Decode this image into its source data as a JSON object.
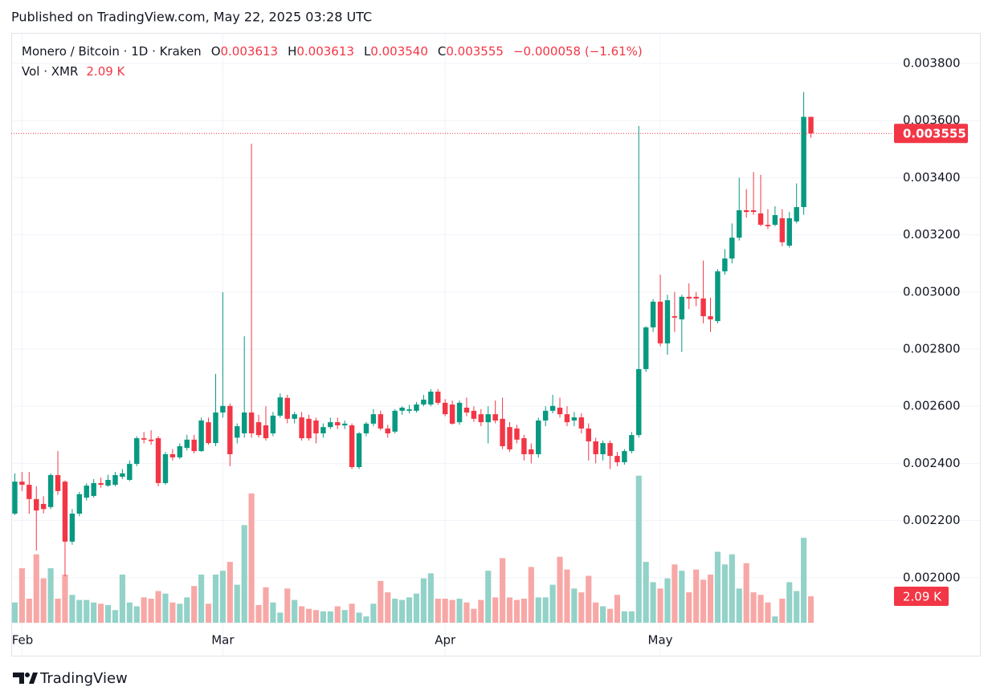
{
  "published": "Published on TradingView.com, May 22, 2025 03:28 UTC",
  "brand": "TradingView",
  "chart_data": {
    "type": "candlestick",
    "title": "Monero / Bitcoin · 1D · Kraken",
    "ohlc_legend": [
      {
        "key": "O",
        "value": "0.003613"
      },
      {
        "key": "H",
        "value": "0.003613"
      },
      {
        "key": "L",
        "value": "0.003540"
      },
      {
        "key": "C",
        "value": "0.003555"
      }
    ],
    "change": "−0.000058 (−1.61%)",
    "volume_legend": {
      "name": "Vol · XMR",
      "value": "2.09 K"
    },
    "up_color": "#089981",
    "down_color": "#f23645",
    "volume_up_color": "#92d2c8",
    "volume_down_color": "#f7a8a6",
    "grid": true,
    "ylim": [
      0.001842,
      0.003904
    ],
    "yticks": [
      {
        "value": 0.0038,
        "label": "0.003800"
      },
      {
        "value": 0.0036,
        "label": "0.003600"
      },
      {
        "value": 0.0034,
        "label": "0.003400"
      },
      {
        "value": 0.0032,
        "label": "0.003200"
      },
      {
        "value": 0.003,
        "label": "0.003000"
      },
      {
        "value": 0.0028,
        "label": "0.002800"
      },
      {
        "value": 0.0026,
        "label": "0.002600"
      },
      {
        "value": 0.0024,
        "label": "0.002400"
      },
      {
        "value": 0.0022,
        "label": "0.002200"
      },
      {
        "value": 0.002,
        "label": "0.002000"
      }
    ],
    "categories": [
      null,
      "Feb",
      null,
      null,
      null,
      null,
      null,
      null,
      null,
      null,
      null,
      null,
      null,
      null,
      null,
      null,
      null,
      null,
      null,
      null,
      null,
      null,
      null,
      null,
      null,
      null,
      null,
      null,
      null,
      "Mar",
      null,
      null,
      null,
      null,
      null,
      null,
      null,
      null,
      null,
      null,
      null,
      null,
      null,
      null,
      null,
      null,
      null,
      null,
      null,
      null,
      null,
      null,
      null,
      null,
      null,
      null,
      null,
      null,
      null,
      null,
      "Apr",
      null,
      null,
      null,
      null,
      null,
      null,
      null,
      null,
      null,
      null,
      null,
      null,
      null,
      null,
      null,
      null,
      null,
      null,
      null,
      null,
      null,
      null,
      null,
      null,
      null,
      null,
      null,
      null,
      null,
      "May",
      null,
      null,
      null,
      null,
      null,
      null,
      null,
      null,
      null,
      null,
      null,
      null,
      null,
      null,
      null,
      null,
      null,
      null,
      null,
      null,
      null
    ],
    "open": [
      0.002224,
      0.002336,
      0.002325,
      0.002275,
      0.002258,
      0.002247,
      0.002359,
      0.002336,
      0.002126,
      0.002224,
      0.00228,
      0.002286,
      0.002331,
      0.002322,
      0.002325,
      0.002353,
      0.002342,
      0.002398,
      0.002488,
      0.002483,
      0.002488,
      0.002331,
      0.002432,
      0.002421,
      0.002454,
      0.002483,
      0.002443,
      0.002544,
      0.002471,
      0.002578,
      0.002601,
      0.00249,
      0.002505,
      0.002578,
      0.002544,
      0.002533,
      0.002505,
      0.002567,
      0.002629,
      0.002556,
      0.002561,
      0.002556,
      0.00255,
      0.002505,
      0.002527,
      0.002544,
      0.002533,
      0.002533,
      0.002387,
      0.002505,
      0.002539,
      0.002572,
      0.002522,
      0.002511,
      0.002584,
      0.002584,
      0.002584,
      0.002606,
      0.002606,
      0.002651,
      0.002612,
      0.002606,
      0.002544,
      0.002595,
      0.002584,
      0.002572,
      0.002544,
      0.002572,
      0.002556,
      0.002527,
      0.002522,
      0.002488,
      0.002449,
      0.002432,
      0.00255,
      0.002584,
      0.002595,
      0.002572,
      0.00255,
      0.002561,
      0.002522,
      0.002477,
      0.002432,
      0.002471,
      0.002426,
      0.002404,
      0.002443,
      0.002499,
      0.00273,
      0.002876,
      0.002966,
      0.00282,
      0.002915,
      0.002904,
      0.002983,
      0.002983,
      0.002977,
      0.002915,
      0.002898,
      0.003072,
      0.003117,
      0.00319,
      0.003286,
      0.003286,
      0.003275,
      0.003235,
      0.003235,
      0.003258,
      0.003162,
      0.003247,
      0.003297,
      0.003613
    ],
    "high": [
      0.002365,
      0.00237,
      0.00237,
      0.00232,
      0.002285,
      0.002365,
      0.002443,
      0.00234,
      0.00224,
      0.0023,
      0.00233,
      0.002345,
      0.00235,
      0.00236,
      0.00237,
      0.00238,
      0.00241,
      0.002495,
      0.00251,
      0.002516,
      0.002495,
      0.00244,
      0.00245,
      0.00247,
      0.0025,
      0.0025,
      0.00256,
      0.00256,
      0.002713,
      0.002999,
      0.00261,
      0.00254,
      0.002845,
      0.003519,
      0.00257,
      0.0026,
      0.00258,
      0.002645,
      0.00264,
      0.00258,
      0.00258,
      0.00257,
      0.00256,
      0.00254,
      0.00256,
      0.00256,
      0.00255,
      0.00254,
      0.00251,
      0.002545,
      0.00259,
      0.002585,
      0.002535,
      0.00259,
      0.0026,
      0.002605,
      0.002615,
      0.00264,
      0.00266,
      0.00266,
      0.002625,
      0.00262,
      0.00262,
      0.00263,
      0.0026,
      0.00259,
      0.0026,
      0.00262,
      0.00263,
      0.002545,
      0.002535,
      0.0025,
      0.00247,
      0.00256,
      0.0026,
      0.00264,
      0.00263,
      0.0026,
      0.00258,
      0.002575,
      0.00254,
      0.00249,
      0.00248,
      0.00248,
      0.00244,
      0.00245,
      0.00251,
      0.003581,
      0.00288,
      0.002975,
      0.00306,
      0.00299,
      0.003,
      0.00299,
      0.00303,
      0.003,
      0.00311,
      0.00298,
      0.00308,
      0.00315,
      0.00324,
      0.0034,
      0.00336,
      0.00342,
      0.00341,
      0.00329,
      0.0033,
      0.00329,
      0.00328,
      0.00338,
      0.0037,
      0.003613
    ],
    "low": [
      0.002219,
      0.002303,
      0.002224,
      0.002095,
      0.002225,
      0.00224,
      0.00229,
      0.002005,
      0.002115,
      0.002215,
      0.00227,
      0.00228,
      0.002315,
      0.002318,
      0.00232,
      0.002345,
      0.002338,
      0.00239,
      0.00247,
      0.002465,
      0.00232,
      0.002325,
      0.00241,
      0.002415,
      0.002445,
      0.002435,
      0.00244,
      0.002465,
      0.00246,
      0.00256,
      0.00239,
      0.00247,
      0.00249,
      0.00249,
      0.00249,
      0.00248,
      0.002495,
      0.00256,
      0.00254,
      0.00254,
      0.00248,
      0.00248,
      0.00247,
      0.00249,
      0.00252,
      0.00252,
      0.00252,
      0.00238,
      0.00238,
      0.002495,
      0.00253,
      0.002515,
      0.00249,
      0.002505,
      0.00257,
      0.002575,
      0.002578,
      0.0026,
      0.0026,
      0.002605,
      0.002565,
      0.002535,
      0.002535,
      0.002565,
      0.002545,
      0.00253,
      0.00247,
      0.00254,
      0.00245,
      0.00244,
      0.00247,
      0.00241,
      0.0024,
      0.00242,
      0.00253,
      0.002575,
      0.00256,
      0.00253,
      0.00253,
      0.002505,
      0.00241,
      0.0024,
      0.00241,
      0.00238,
      0.00239,
      0.002395,
      0.002435,
      0.00249,
      0.00272,
      0.00286,
      0.00281,
      0.00278,
      0.00286,
      0.00279,
      0.00294,
      0.00295,
      0.00289,
      0.00286,
      0.00289,
      0.00306,
      0.0031,
      0.00318,
      0.00326,
      0.00327,
      0.00323,
      0.00322,
      0.00323,
      0.00316,
      0.003155,
      0.00324,
      0.00327,
      0.00354
    ],
    "close": [
      0.002336,
      0.002325,
      0.002275,
      0.002235,
      0.00224,
      0.002359,
      0.002303,
      0.002126,
      0.002224,
      0.002292,
      0.002322,
      0.002331,
      0.002325,
      0.002342,
      0.002359,
      0.002365,
      0.002398,
      0.002488,
      0.002483,
      0.002478,
      0.002331,
      0.002432,
      0.002421,
      0.00246,
      0.002483,
      0.002443,
      0.00255,
      0.002471,
      0.002578,
      0.002601,
      0.002432,
      0.00253,
      0.002578,
      0.002505,
      0.002499,
      0.002488,
      0.002567,
      0.002631,
      0.002556,
      0.002572,
      0.002488,
      0.002488,
      0.002505,
      0.002527,
      0.002544,
      0.002533,
      0.002539,
      0.002387,
      0.002505,
      0.002539,
      0.002572,
      0.002522,
      0.002505,
      0.002584,
      0.002595,
      0.002589,
      0.002606,
      0.002623,
      0.002651,
      0.002612,
      0.002572,
      0.002539,
      0.002612,
      0.002578,
      0.002556,
      0.002544,
      0.002572,
      0.00255,
      0.00246,
      0.002449,
      0.002483,
      0.002432,
      0.002432,
      0.00255,
      0.002584,
      0.002601,
      0.002572,
      0.002544,
      0.002561,
      0.002522,
      0.002477,
      0.002432,
      0.002471,
      0.002426,
      0.002404,
      0.002443,
      0.002499,
      0.00273,
      0.002876,
      0.002966,
      0.00282,
      0.002971,
      0.00291,
      0.002983,
      0.002977,
      0.002977,
      0.002915,
      0.002904,
      0.003072,
      0.003117,
      0.00319,
      0.003286,
      0.00328,
      0.00328,
      0.003235,
      0.00323,
      0.003269,
      0.003174,
      0.003258,
      0.003297,
      0.003613,
      0.003555
    ],
    "volume": [
      1.6,
      4.3,
      1.9,
      5.4,
      3.5,
      4.3,
      1.9,
      3.8,
      2.2,
      1.8,
      1.8,
      1.6,
      1.5,
      1.4,
      1.0,
      3.8,
      1.6,
      1.3,
      2.0,
      1.9,
      2.5,
      2.3,
      1.6,
      1.5,
      2.0,
      2.9,
      3.8,
      1.5,
      3.8,
      4.1,
      4.8,
      3.0,
      7.7,
      10.2,
      1.4,
      2.8,
      1.6,
      0.8,
      2.7,
      1.8,
      1.3,
      1.1,
      1.0,
      0.9,
      0.9,
      1.3,
      1.0,
      1.5,
      0.8,
      0.5,
      1.5,
      3.3,
      2.4,
      1.9,
      1.8,
      2.0,
      2.3,
      3.5,
      3.9,
      1.9,
      1.9,
      1.8,
      1.9,
      1.6,
      1.1,
      1.8,
      4.1,
      2.0,
      5.1,
      2.0,
      1.8,
      1.9,
      4.4,
      2.0,
      2.0,
      3.0,
      5.2,
      4.2,
      2.7,
      2.4,
      3.7,
      1.6,
      1.3,
      1.1,
      2.2,
      0.9,
      0.9,
      11.6,
      4.8,
      3.2,
      2.7,
      3.5,
      4.6,
      4.1,
      2.4,
      4.2,
      3.4,
      3.8,
      5.6,
      4.6,
      5.4,
      2.7,
      4.7,
      2.4,
      2.2,
      1.6,
      0.5,
      1.9,
      3.2,
      2.5,
      6.7,
      2.09
    ]
  }
}
